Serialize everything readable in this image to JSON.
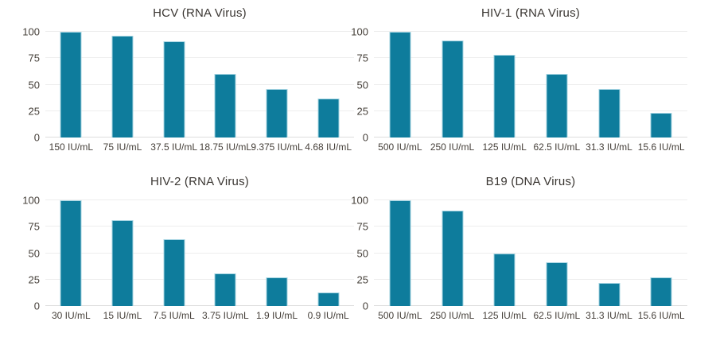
{
  "style": {
    "bar_color": "#0e7c9c",
    "bar_edge_color": "#a5d4e2",
    "grid_color": "#ededed",
    "baseline_color": "#dedede",
    "title_color": "#3b3733",
    "tick_color": "#46403a",
    "background": "#ffffff"
  },
  "chart_data": [
    {
      "type": "bar",
      "title": "HCV (RNA Virus)",
      "categories": [
        "150 IU/mL",
        "75 IU/mL",
        "37.5 IU/mL",
        "18.75 IU/mL",
        "9.375 IU/mL",
        "4.68 IU/mL"
      ],
      "values": [
        100,
        96,
        91,
        60,
        46,
        37
      ],
      "xlabel": "",
      "ylabel": "",
      "ylim": [
        0,
        100
      ],
      "yticks": [
        0,
        25,
        50,
        75,
        100
      ],
      "grid": true,
      "legend": "none"
    },
    {
      "type": "bar",
      "title": "HIV-1 (RNA Virus)",
      "categories": [
        "500 IU/mL",
        "250 IU/mL",
        "125 IU/mL",
        "62.5 IU/mL",
        "31.3 IU/mL",
        "15.6 IU/mL"
      ],
      "values": [
        100,
        92,
        78,
        60,
        46,
        23
      ],
      "xlabel": "",
      "ylabel": "",
      "ylim": [
        0,
        100
      ],
      "yticks": [
        0,
        25,
        50,
        75,
        100
      ],
      "grid": true,
      "legend": "none"
    },
    {
      "type": "bar",
      "title": "HIV-2 (RNA Virus)",
      "categories": [
        "30 IU/mL",
        "15 IU/mL",
        "7.5 IU/mL",
        "3.75 IU/mL",
        "1.9 IU/mL",
        "0.9 IU/mL"
      ],
      "values": [
        100,
        81,
        63,
        31,
        27,
        13
      ],
      "xlabel": "",
      "ylabel": "",
      "ylim": [
        0,
        100
      ],
      "yticks": [
        0,
        25,
        50,
        75,
        100
      ],
      "grid": true,
      "legend": "none"
    },
    {
      "type": "bar",
      "title": "B19 (DNA Virus)",
      "categories": [
        "500 IU/mL",
        "250 IU/mL",
        "125 IU/mL",
        "62.5 IU/mL",
        "31.3 IU/mL",
        "15.6 IU/mL"
      ],
      "values": [
        100,
        90,
        50,
        41,
        22,
        27
      ],
      "xlabel": "",
      "ylabel": "",
      "ylim": [
        0,
        100
      ],
      "yticks": [
        0,
        25,
        50,
        75,
        100
      ],
      "grid": true,
      "legend": "none"
    }
  ]
}
